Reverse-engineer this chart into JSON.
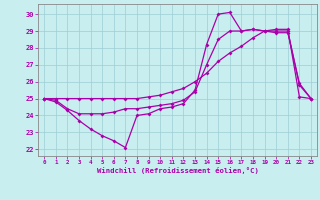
{
  "xlabel": "Windchill (Refroidissement éolien,°C)",
  "background_color": "#c8eef0",
  "grid_color": "#9ecdd4",
  "line_color": "#aa00aa",
  "x_ticks": [
    0,
    1,
    2,
    3,
    4,
    5,
    6,
    7,
    8,
    9,
    10,
    11,
    12,
    13,
    14,
    15,
    16,
    17,
    18,
    19,
    20,
    21,
    22,
    23
  ],
  "y_ticks": [
    22,
    23,
    24,
    25,
    26,
    27,
    28,
    29,
    30
  ],
  "ylim": [
    21.6,
    30.6
  ],
  "xlim": [
    -0.5,
    23.5
  ],
  "line1_y": [
    25.0,
    24.8,
    24.3,
    23.7,
    23.2,
    22.8,
    22.5,
    22.1,
    24.0,
    24.1,
    24.4,
    24.5,
    24.7,
    25.5,
    28.2,
    30.0,
    30.1,
    29.0,
    29.1,
    29.0,
    29.0,
    29.0,
    25.8,
    25.0
  ],
  "line2_y": [
    25.0,
    25.0,
    25.0,
    25.0,
    25.0,
    25.0,
    25.0,
    25.0,
    25.0,
    25.1,
    25.2,
    25.4,
    25.6,
    26.0,
    26.5,
    27.2,
    27.7,
    28.1,
    28.6,
    29.0,
    29.1,
    29.1,
    25.1,
    25.0
  ],
  "line3_y": [
    25.0,
    24.9,
    24.4,
    24.1,
    24.1,
    24.1,
    24.2,
    24.4,
    24.4,
    24.5,
    24.6,
    24.7,
    24.9,
    25.4,
    27.0,
    28.5,
    29.0,
    29.0,
    29.1,
    29.0,
    28.9,
    28.9,
    25.9,
    25.0
  ]
}
